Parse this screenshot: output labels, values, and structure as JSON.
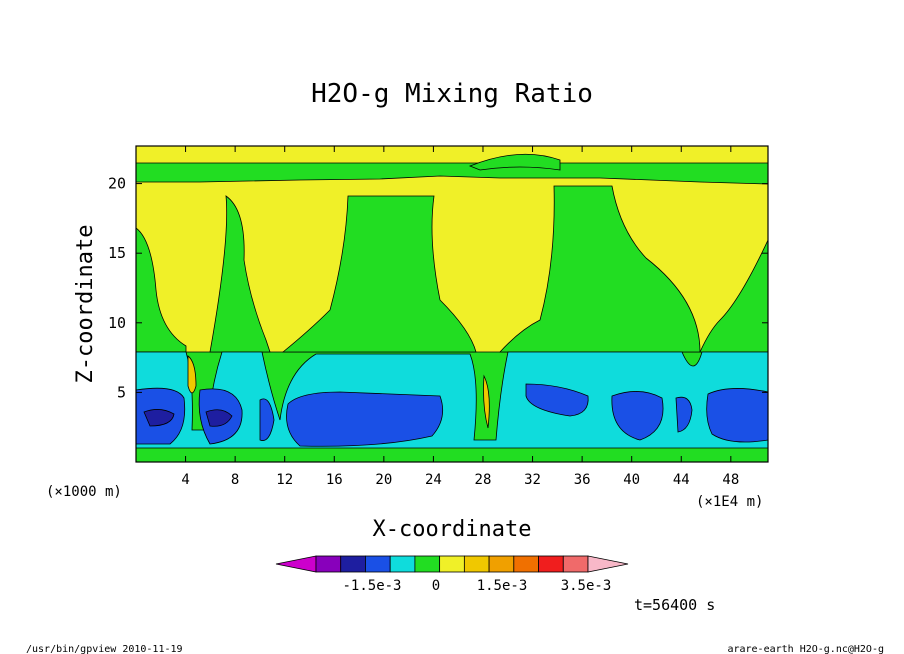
{
  "chart_data": {
    "type": "heatmap",
    "title": "H2O-g Mixing Ratio",
    "xlabel": "X-coordinate",
    "ylabel": "Z-coordinate",
    "x_unit_left": "(×1000 m)",
    "x_unit_right": "(×1E4 m)",
    "xlim": [
      0,
      51
    ],
    "ylim": [
      0,
      22.7
    ],
    "x_ticks": [
      "4",
      "8",
      "12",
      "16",
      "20",
      "24",
      "28",
      "32",
      "36",
      "40",
      "44",
      "48"
    ],
    "x_tick_values": [
      4,
      8,
      12,
      16,
      20,
      24,
      28,
      32,
      36,
      40,
      44,
      48
    ],
    "y_ticks": [
      "5",
      "10",
      "15",
      "20"
    ],
    "y_tick_values": [
      5,
      10,
      15,
      20
    ],
    "colorbar": {
      "colors": [
        "#cc00cc",
        "#8800bb",
        "#1e1ea0",
        "#1a50e6",
        "#0fdcdc",
        "#22dd22",
        "#f0f028",
        "#f0c800",
        "#f0a000",
        "#f07000",
        "#f01e1e",
        "#f06a6a",
        "#f8b8c8"
      ],
      "labels": [
        "-1.5e-3",
        "0",
        "1.5e-3",
        "3.5e-3"
      ]
    },
    "time_label": "t=56400 s",
    "regions": {
      "background": "#f0f028",
      "green": "#22dd22",
      "cyan": "#0fdcdc",
      "blue": "#1a50e6",
      "darkblue": "#1e1ea0",
      "orange": "#f0c800"
    }
  },
  "footer": {
    "left": "/usr/bin/gpview   2010-11-19",
    "right": "arare-earth_H2O-g.nc@H2O-g"
  }
}
